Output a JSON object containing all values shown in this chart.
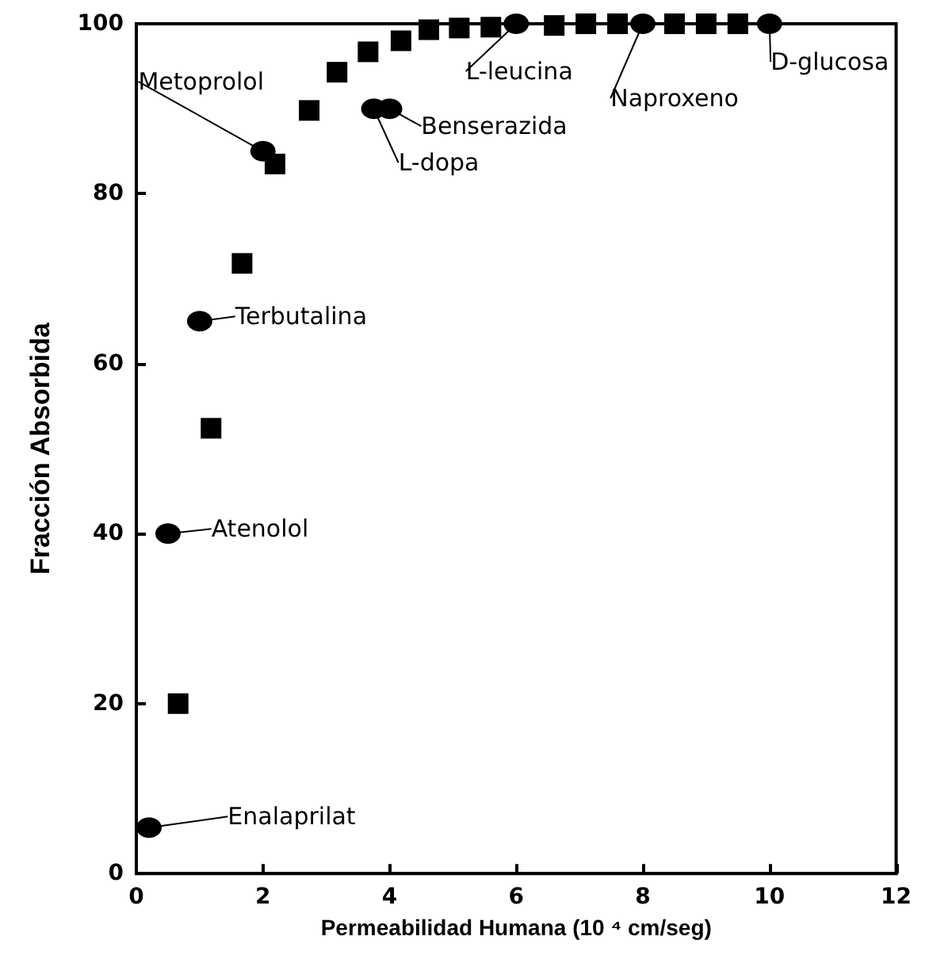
{
  "chart_data": {
    "type": "scatter",
    "xlabel": "Permeabilidad Humana (10 ⁴ cm/seg)",
    "ylabel": "Fracción Absorbida",
    "xlim": [
      0,
      12
    ],
    "xticks": [
      0,
      2,
      4,
      6,
      8,
      10,
      12
    ],
    "ylim": [
      0,
      100
    ],
    "yticks": [
      0,
      20,
      40,
      60,
      80,
      100
    ],
    "grid": false,
    "series": [
      {
        "color": "#000000",
        "marker": "square",
        "x": [
          0.66,
          1.18,
          1.67,
          2.19,
          2.73,
          3.17,
          3.66,
          4.18,
          4.62,
          5.1,
          5.6,
          6.6,
          7.1,
          7.6,
          8.5,
          9.0,
          9.5
        ],
        "values": [
          20,
          52.4,
          71.8,
          83.5,
          89.8,
          94.3,
          96.7,
          98,
          99.3,
          99.5,
          99.6,
          99.8,
          100,
          100,
          100,
          100,
          100
        ]
      },
      {
        "color": "#000000",
        "marker": "circle",
        "x": [
          0.2,
          0.5,
          1.0,
          2.0,
          3.75,
          4.0,
          6.0,
          8.0,
          10.0
        ],
        "values": [
          5.4,
          40,
          65,
          85,
          90,
          90,
          100,
          100,
          100
        ]
      }
    ],
    "annotations": [
      {
        "text": "Enalaprilat",
        "x": 0.2,
        "y": 5.4
      },
      {
        "text": "Atenolol",
        "x": 0.5,
        "y": 40
      },
      {
        "text": "Terbutalina",
        "x": 1.0,
        "y": 65
      },
      {
        "text": "Metoprolol",
        "x": 2.0,
        "y": 85
      },
      {
        "text": "L-dopa",
        "x": 3.75,
        "y": 90
      },
      {
        "text": "Benserazida",
        "x": 4.0,
        "y": 90
      },
      {
        "text": "L-leucina",
        "x": 6.0,
        "y": 100
      },
      {
        "text": "Naproxeno",
        "x": 8.0,
        "y": 100
      },
      {
        "text": "D-glucosa",
        "x": 10.0,
        "y": 100
      }
    ]
  }
}
